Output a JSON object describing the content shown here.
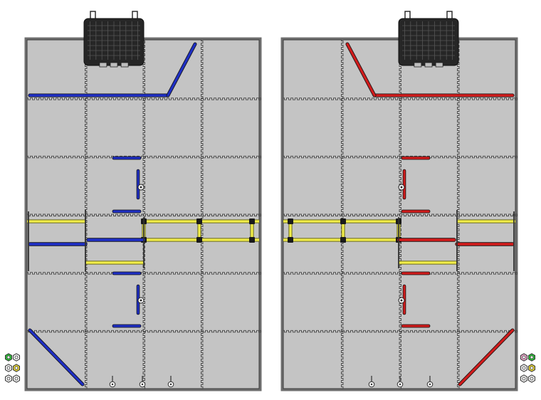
{
  "colors": {
    "background": "#ffffff",
    "tile": "#c4c4c4",
    "tile_border": "#3a3a3a",
    "seam": "#4a4a4a",
    "frame": "#6e6e6e",
    "blue_team": "#1f2fc4",
    "red_team": "#d01c1c",
    "rail_yellow": "#f2ee4a",
    "rail_outline": "#6b6a1a",
    "bracket": "#1a1a1a",
    "basket": "#262626",
    "marker_green": "#2fbf3a",
    "marker_gold": "#e3d13a",
    "marker_white": "#f2f2f2",
    "marker_pink": "#e9a6c9"
  },
  "fields": [
    {
      "name": "left-field",
      "team": "blue"
    },
    {
      "name": "right-field",
      "team": "red"
    }
  ],
  "icons": {
    "basket": "basket-icon",
    "wall-target": "wall-target-icon",
    "floor-pin": "floor-pin-icon",
    "hex-marker": "hex-marker-icon"
  }
}
